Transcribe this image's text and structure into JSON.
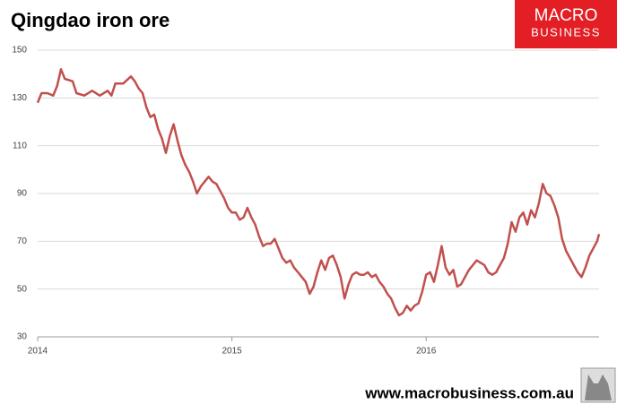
{
  "chart_data": {
    "type": "line",
    "title": "Qingdao iron ore",
    "brand": [
      "MACRO",
      "BUSINESS"
    ],
    "footer": "www.macrobusiness.com.au",
    "x": [
      2014.0,
      2014.02,
      2014.05,
      2014.08,
      2014.1,
      2014.12,
      2014.14,
      2014.18,
      2014.2,
      2014.24,
      2014.28,
      2014.32,
      2014.36,
      2014.38,
      2014.4,
      2014.44,
      2014.48,
      2014.5,
      2014.52,
      2014.54,
      2014.56,
      2014.58,
      2014.6,
      2014.62,
      2014.64,
      2014.66,
      2014.68,
      2014.7,
      2014.72,
      2014.74,
      2014.76,
      2014.78,
      2014.8,
      2014.82,
      2014.84,
      2014.86,
      2014.88,
      2014.9,
      2014.92,
      2014.94,
      2014.96,
      2014.98,
      2015.0,
      2015.02,
      2015.04,
      2015.06,
      2015.08,
      2015.1,
      2015.12,
      2015.14,
      2015.16,
      2015.18,
      2015.2,
      2015.22,
      2015.24,
      2015.26,
      2015.28,
      2015.3,
      2015.32,
      2015.34,
      2015.36,
      2015.38,
      2015.4,
      2015.42,
      2015.44,
      2015.46,
      2015.48,
      2015.5,
      2015.52,
      2015.54,
      2015.56,
      2015.58,
      2015.6,
      2015.62,
      2015.64,
      2015.66,
      2015.68,
      2015.7,
      2015.72,
      2015.74,
      2015.76,
      2015.78,
      2015.8,
      2015.82,
      2015.84,
      2015.86,
      2015.88,
      2015.9,
      2015.92,
      2015.94,
      2015.96,
      2015.98,
      2016.0,
      2016.02,
      2016.04,
      2016.06,
      2016.08,
      2016.1,
      2016.12,
      2016.14,
      2016.16,
      2016.18,
      2016.2,
      2016.22,
      2016.24,
      2016.26,
      2016.28,
      2016.3,
      2016.32,
      2016.34,
      2016.36,
      2016.38,
      2016.4,
      2016.42,
      2016.44,
      2016.46,
      2016.48,
      2016.5,
      2016.52,
      2016.54,
      2016.56,
      2016.58,
      2016.6,
      2016.62,
      2016.64,
      2016.66,
      2016.68,
      2016.7,
      2016.72,
      2016.74,
      2016.76,
      2016.78,
      2016.8,
      2016.82,
      2016.84,
      2016.86,
      2016.88,
      2016.89
    ],
    "series": [
      {
        "name": "Qingdao iron ore",
        "color": "#c0504d",
        "values": [
          128,
          132,
          132,
          131,
          135,
          142,
          138,
          137,
          132,
          131,
          133,
          131,
          133,
          131,
          136,
          136,
          139,
          137,
          134,
          132,
          126,
          122,
          123,
          117,
          113,
          107,
          114,
          119,
          112,
          106,
          102,
          99,
          95,
          90,
          93,
          95,
          97,
          95,
          94,
          91,
          88,
          84,
          82,
          82,
          79,
          80,
          84,
          80,
          77,
          72,
          68,
          69,
          69,
          71,
          67,
          63,
          61,
          62,
          59,
          57,
          55,
          53,
          48,
          51,
          57,
          62,
          58,
          63,
          64,
          60,
          55,
          46,
          52,
          56,
          57,
          56,
          56,
          57,
          55,
          56,
          53,
          51,
          48,
          46,
          42,
          39,
          40,
          43,
          41,
          43,
          44,
          49,
          56,
          57,
          53,
          60,
          68,
          59,
          56,
          58,
          51,
          52,
          55,
          58,
          60,
          62,
          61,
          60,
          57,
          56,
          57,
          60,
          63,
          69,
          78,
          74,
          80,
          82,
          77,
          83,
          80,
          86,
          94,
          90,
          89,
          85,
          80,
          71,
          66,
          63,
          60,
          57,
          55,
          59,
          64,
          67,
          70,
          73
        ]
      }
    ],
    "xlim": [
      2014,
      2016.89
    ],
    "xticks": [
      2014,
      2015,
      2016
    ],
    "ylim": [
      30,
      150
    ],
    "yticks": [
      30,
      50,
      70,
      90,
      110,
      130,
      150
    ],
    "grid": true
  }
}
